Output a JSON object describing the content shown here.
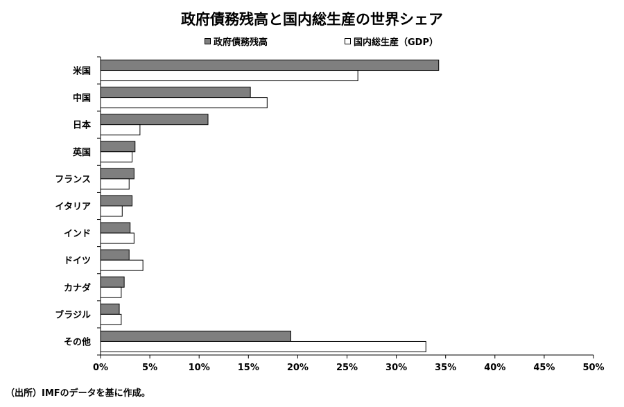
{
  "chart_data": {
    "type": "bar",
    "orientation": "horizontal",
    "title": "政府債務残高と国内総生産の世界シェア",
    "categories": [
      "米国",
      "中国",
      "日本",
      "英国",
      "フランス",
      "イタリア",
      "インド",
      "ドイツ",
      "カナダ",
      "ブラジル",
      "その他"
    ],
    "series": [
      {
        "name": "政府債務残高",
        "color": "#7f7f7f",
        "values": [
          34.3,
          15.2,
          10.9,
          3.5,
          3.4,
          3.2,
          3.0,
          2.9,
          2.4,
          1.9,
          19.3
        ]
      },
      {
        "name": "国内総生産（GDP）",
        "color": "#ffffff",
        "values": [
          26.1,
          16.9,
          4.0,
          3.2,
          2.9,
          2.2,
          3.4,
          4.3,
          2.1,
          2.1,
          33.0
        ]
      }
    ],
    "xlim": [
      0,
      50
    ],
    "xticks": [
      0,
      5,
      10,
      15,
      20,
      25,
      30,
      35,
      40,
      45,
      50
    ],
    "tick_labels": [
      "0%",
      "5%",
      "10%",
      "15%",
      "20%",
      "25%",
      "30%",
      "35%",
      "40%",
      "45%",
      "50%"
    ],
    "grid": false,
    "legend_position": "top-center"
  },
  "source_note": "（出所）IMFのデータを基に作成。"
}
